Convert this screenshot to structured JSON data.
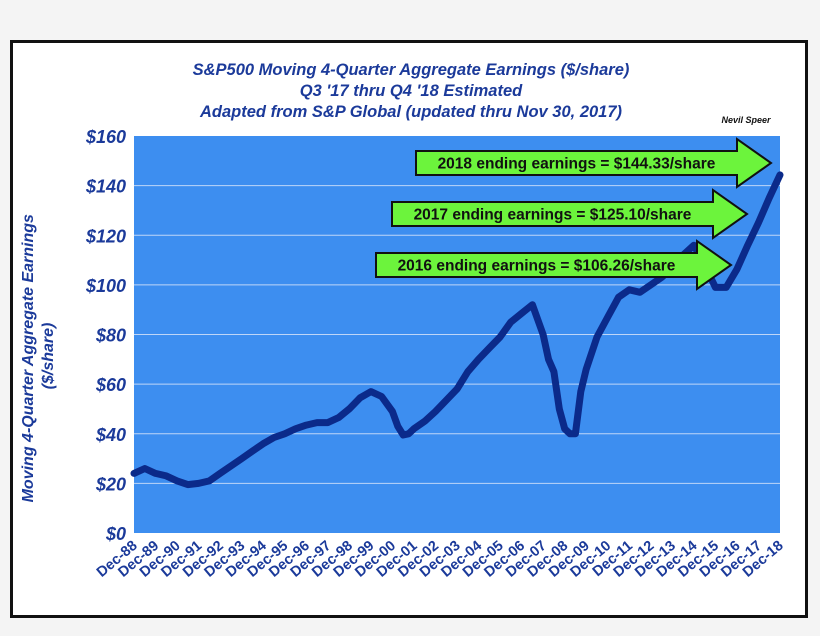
{
  "chart_data": {
    "type": "line",
    "title": [
      "S&P500 Moving 4-Quarter Aggregate Earnings ($/share)",
      "Q3 '17 thru Q4 '18 Estimated",
      "Adapted from S&P Global (updated thru Nov 30, 2017)"
    ],
    "author": "Nevil Speer",
    "ylabel": "Moving 4-Quarter Aggregate Earnings ($/share)",
    "xlabel": "",
    "ylim": [
      0,
      160
    ],
    "y_ticks": [
      0,
      20,
      40,
      60,
      80,
      100,
      120,
      140,
      160
    ],
    "y_tick_labels": [
      "$0",
      "$20",
      "$40",
      "$60",
      "$80",
      "$100",
      "$120",
      "$140",
      "$160"
    ],
    "x_range": [
      1988.917,
      2018.917
    ],
    "x_tick_values": [
      1988.917,
      1989.917,
      1990.917,
      1991.917,
      1992.917,
      1993.917,
      1994.917,
      1995.917,
      1996.917,
      1997.917,
      1998.917,
      1999.917,
      2000.917,
      2001.917,
      2002.917,
      2003.917,
      2004.917,
      2005.917,
      2006.917,
      2007.917,
      2008.917,
      2009.917,
      2010.917,
      2011.917,
      2012.917,
      2013.917,
      2014.917,
      2015.917,
      2016.917,
      2017.917,
      2018.917
    ],
    "x_tick_labels": [
      "Dec-88",
      "Dec-89",
      "Dec-90",
      "Dec-91",
      "Dec-92",
      "Dec-93",
      "Dec-94",
      "Dec-95",
      "Dec-96",
      "Dec-97",
      "Dec-98",
      "Dec-99",
      "Dec-00",
      "Dec-01",
      "Dec-02",
      "Dec-03",
      "Dec-04",
      "Dec-05",
      "Dec-06",
      "Dec-07",
      "Dec-08",
      "Dec-09",
      "Dec-10",
      "Dec-11",
      "Dec-12",
      "Dec-13",
      "Dec-14",
      "Dec-15",
      "Dec-16",
      "Dec-17",
      "Dec-18"
    ],
    "grid": "horizontal",
    "series": [
      {
        "name": "",
        "x": [
          1988.917,
          1989.417,
          1989.917,
          1990.417,
          1990.917,
          1991.417,
          1991.917,
          1992.417,
          1992.917,
          1993.417,
          1993.917,
          1994.417,
          1994.917,
          1995.417,
          1995.917,
          1996.417,
          1996.917,
          1997.417,
          1997.917,
          1998.417,
          1998.917,
          1999.417,
          1999.917,
          2000.417,
          2000.917,
          2001.167,
          2001.417,
          2001.667,
          2001.917,
          2002.417,
          2002.917,
          2003.417,
          2003.917,
          2004.417,
          2004.917,
          2005.417,
          2005.917,
          2006.417,
          2006.917,
          2007.417,
          2007.917,
          2008.167,
          2008.417,
          2008.667,
          2008.917,
          2009.167,
          2009.417,
          2009.667,
          2009.917,
          2010.417,
          2010.917,
          2011.417,
          2011.917,
          2012.417,
          2012.917,
          2013.417,
          2013.917,
          2014.417,
          2014.917,
          2015.417,
          2015.917,
          2016.417,
          2016.917,
          2017.417,
          2017.917,
          2018.417,
          2018.917
        ],
        "values": [
          24,
          26,
          24,
          23,
          21,
          19.5,
          20,
          21,
          24,
          27,
          30,
          33,
          36,
          38.5,
          40,
          42,
          43.5,
          44.5,
          44.5,
          46.5,
          50,
          54.5,
          57,
          55,
          49,
          43,
          39.5,
          40,
          42,
          45,
          49,
          53.5,
          58,
          65,
          70,
          74.5,
          79,
          85,
          88.5,
          92,
          80,
          70,
          65,
          50,
          42,
          40,
          40,
          57,
          66,
          79,
          87,
          95,
          98,
          97,
          100,
          103,
          107,
          112,
          116,
          108,
          99,
          99,
          106.26,
          116,
          125.1,
          135,
          144.33
        ]
      }
    ],
    "annotations": [
      "2018 ending earnings = $144.33/share",
      "2017 ending earnings = $125.10/share",
      "2016 ending earnings = $106.26/share"
    ],
    "colors": {
      "plot_background": "#3d8ef0",
      "line": "#0b2a8a",
      "text": "#1b3a9a",
      "arrow_fill": "#6cf43c",
      "arrow_stroke": "#111111",
      "grid": "#bfd6f8"
    }
  }
}
